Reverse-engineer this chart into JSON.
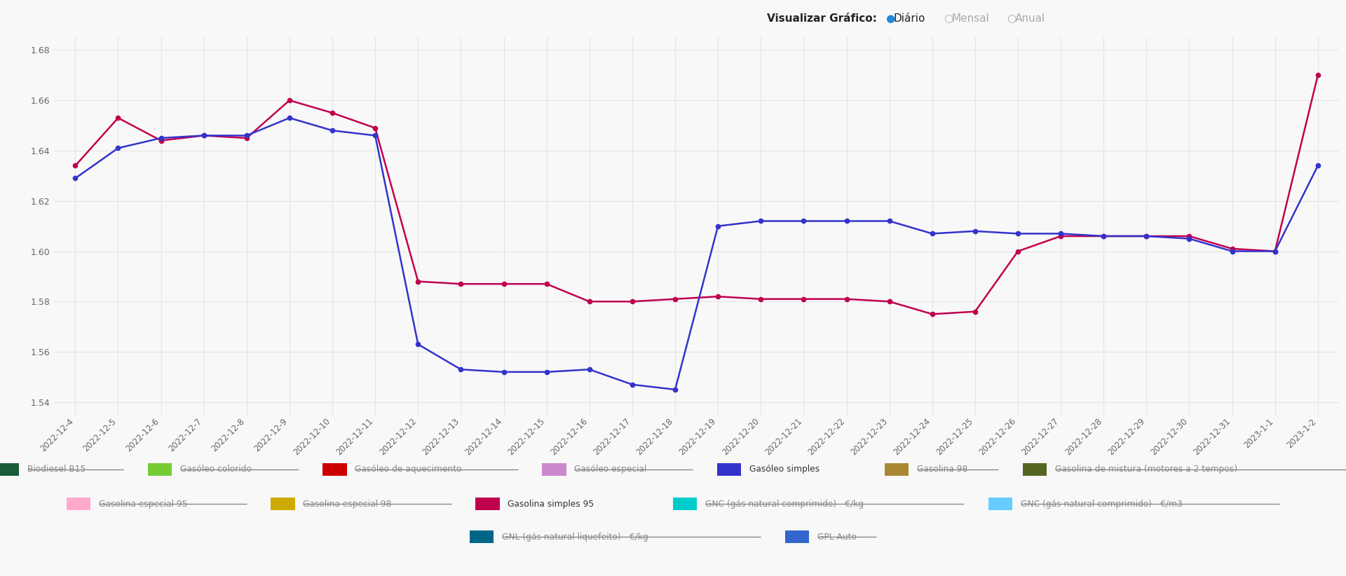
{
  "background_color": "#f8f8f8",
  "ylim": [
    1.535,
    1.685
  ],
  "yticks": [
    1.54,
    1.56,
    1.58,
    1.6,
    1.62,
    1.64,
    1.66,
    1.68
  ],
  "dates": [
    "2022-12-4",
    "2022-12-5",
    "2022-12-6",
    "2022-12-7",
    "2022-12-8",
    "2022-12-9",
    "2022-12-10",
    "2022-12-11",
    "2022-12-12",
    "2022-12-13",
    "2022-12-14",
    "2022-12-15",
    "2022-12-16",
    "2022-12-17",
    "2022-12-18",
    "2022-12-19",
    "2022-12-20",
    "2022-12-21",
    "2022-12-22",
    "2022-12-23",
    "2022-12-24",
    "2022-12-25",
    "2022-12-26",
    "2022-12-27",
    "2022-12-28",
    "2022-12-29",
    "2022-12-30",
    "2022-12-31",
    "2023-1-1",
    "2023-1-2"
  ],
  "gasolina_simples_95": [
    1.634,
    1.653,
    1.644,
    1.646,
    1.645,
    1.66,
    1.655,
    1.649,
    1.588,
    1.587,
    1.587,
    1.587,
    1.58,
    1.58,
    1.581,
    1.582,
    1.581,
    1.581,
    1.581,
    1.58,
    1.575,
    1.576,
    1.6,
    1.606,
    1.606,
    1.606,
    1.606,
    1.601,
    1.6,
    1.67
  ],
  "gasoleo_simples": [
    1.629,
    1.641,
    1.645,
    1.646,
    1.646,
    1.653,
    1.648,
    1.646,
    1.563,
    1.553,
    1.552,
    1.552,
    1.553,
    1.547,
    1.545,
    1.61,
    1.612,
    1.612,
    1.612,
    1.612,
    1.607,
    1.608,
    1.607,
    1.607,
    1.606,
    1.606,
    1.605,
    1.6,
    1.6,
    1.634
  ],
  "line1_color": "#c0004e",
  "line2_color": "#3333cc",
  "grid_color": "#e5e5e5",
  "tick_color": "#666666",
  "header_label": "Visualizar Gráfico:",
  "header_diario": "Diário",
  "header_mensal": "Mensal",
  "header_anual": "Anual",
  "legend_rows": [
    [
      {
        "label": "Biodiesel B15",
        "color": "#1a5c38",
        "strikethrough": true
      },
      {
        "label": "Gasóleo colorido",
        "color": "#77cc33",
        "strikethrough": true
      },
      {
        "label": "Gasóleo de aquecimento",
        "color": "#cc0000",
        "strikethrough": true
      },
      {
        "label": "Gasóleo especial",
        "color": "#cc88cc",
        "strikethrough": true
      },
      {
        "label": "Gasóleo simples",
        "color": "#3333cc",
        "strikethrough": false
      },
      {
        "label": "Gasolina 98",
        "color": "#aa8833",
        "strikethrough": true
      },
      {
        "label": "Gasolina de mistura (motores a 2 tempos)",
        "color": "#556622",
        "strikethrough": true
      }
    ],
    [
      {
        "label": "Gasolina especial 95",
        "color": "#ffaacc",
        "strikethrough": true
      },
      {
        "label": "Gasolina especial 98",
        "color": "#ccaa00",
        "strikethrough": true
      },
      {
        "label": "Gasolina simples 95",
        "color": "#c0004e",
        "strikethrough": false
      },
      {
        "label": "GNC (gás natural comprimido) - €/kg",
        "color": "#00cccc",
        "strikethrough": true
      },
      {
        "label": "GNC (gás natural comprimido) - €/m3",
        "color": "#66ccff",
        "strikethrough": true
      }
    ],
    [
      {
        "label": "GNL (gás natural liquefeito) - €/kg",
        "color": "#006688",
        "strikethrough": true
      },
      {
        "label": "GPL Auto",
        "color": "#3366cc",
        "strikethrough": true
      }
    ]
  ]
}
